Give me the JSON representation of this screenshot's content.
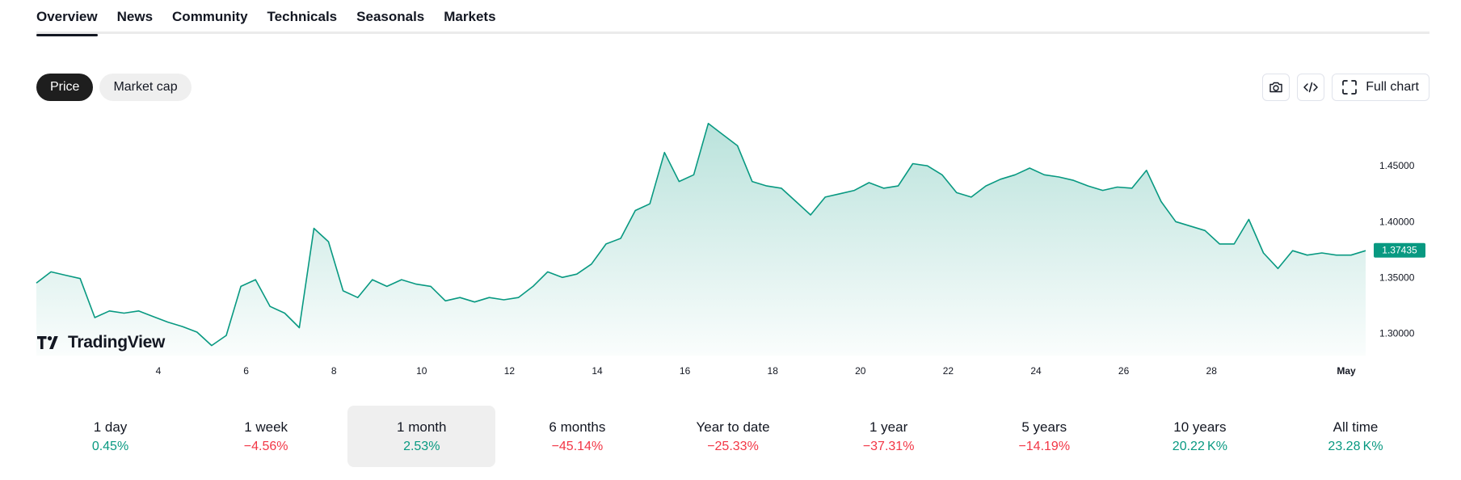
{
  "tabs": [
    {
      "label": "Overview",
      "active": true
    },
    {
      "label": "News"
    },
    {
      "label": "Community"
    },
    {
      "label": "Technicals"
    },
    {
      "label": "Seasonals"
    },
    {
      "label": "Markets"
    }
  ],
  "chart_toggle": {
    "price": "Price",
    "market_cap": "Market cap",
    "selected": "Price"
  },
  "toolbar": {
    "screenshot_icon": "camera-icon",
    "embed_icon": "code-icon",
    "full_chart_icon": "fullscreen-icon",
    "full_chart_label": "Full chart"
  },
  "logo": {
    "text": "TradingView"
  },
  "chart_data": {
    "type": "area",
    "x_labels": [
      "4",
      "6",
      "8",
      "10",
      "12",
      "14",
      "16",
      "18",
      "20",
      "22",
      "24",
      "26",
      "28",
      "May"
    ],
    "y_ticks": [
      "1.30000",
      "1.35000",
      "1.40000",
      "1.45000"
    ],
    "ylim": [
      1.28,
      1.49
    ],
    "last_price": "1.37435",
    "line_color": "#089981",
    "values": [
      1.345,
      1.355,
      1.352,
      1.349,
      1.314,
      1.32,
      1.318,
      1.32,
      1.315,
      1.31,
      1.306,
      1.301,
      1.289,
      1.298,
      1.342,
      1.348,
      1.324,
      1.318,
      1.305,
      1.394,
      1.382,
      1.338,
      1.332,
      1.348,
      1.342,
      1.348,
      1.344,
      1.342,
      1.329,
      1.332,
      1.328,
      1.332,
      1.33,
      1.332,
      1.342,
      1.355,
      1.35,
      1.353,
      1.362,
      1.38,
      1.385,
      1.41,
      1.416,
      1.462,
      1.436,
      1.442,
      1.488,
      1.478,
      1.468,
      1.436,
      1.432,
      1.43,
      1.418,
      1.406,
      1.422,
      1.425,
      1.428,
      1.435,
      1.43,
      1.432,
      1.452,
      1.45,
      1.442,
      1.426,
      1.422,
      1.432,
      1.438,
      1.442,
      1.448,
      1.442,
      1.44,
      1.437,
      1.432,
      1.428,
      1.431,
      1.43,
      1.446,
      1.418,
      1.4,
      1.396,
      1.392,
      1.38,
      1.38,
      1.402,
      1.372,
      1.358,
      1.374,
      1.37,
      1.372,
      1.37,
      1.37,
      1.374
    ]
  },
  "periods": [
    {
      "label": "1 day",
      "value": "0.45%",
      "dir": "pos"
    },
    {
      "label": "1 week",
      "value": "−4.56%",
      "dir": "neg"
    },
    {
      "label": "1 month",
      "value": "2.53%",
      "dir": "pos",
      "active": true
    },
    {
      "label": "6 months",
      "value": "−45.14%",
      "dir": "neg"
    },
    {
      "label": "Year to date",
      "value": "−25.33%",
      "dir": "neg"
    },
    {
      "label": "1 year",
      "value": "−37.31%",
      "dir": "neg"
    },
    {
      "label": "5 years",
      "value": "−14.19%",
      "dir": "neg"
    },
    {
      "label": "10 years",
      "value": "20.22 K%",
      "dir": "pos"
    },
    {
      "label": "All time",
      "value": "23.28 K%",
      "dir": "pos"
    }
  ]
}
